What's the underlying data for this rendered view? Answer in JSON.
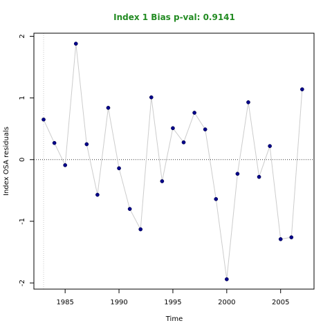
{
  "chart_data": {
    "type": "scatter",
    "title": "Index 1 Bias p-val: 0.9141",
    "title_color": "#228B22",
    "xlabel": "Time",
    "ylabel": "Index OSA residuals",
    "xlim": [
      1982.1,
      2008.1
    ],
    "ylim": [
      -2.1,
      2.05
    ],
    "x_ticks": [
      1985,
      1990,
      1995,
      2000,
      2005
    ],
    "x_tick_labels": [
      "1985",
      "1990",
      "1995",
      "2000",
      "2005"
    ],
    "y_ticks": [
      -2,
      -1,
      0,
      1,
      2
    ],
    "y_tick_labels": [
      "-2",
      "-1",
      "0",
      "1",
      "2"
    ],
    "reference_vline_x": 1983,
    "reference_hline_y": 0,
    "point_color": "#00008B",
    "line_color": "#cccccc",
    "series": [
      {
        "x": [
          1983,
          1984,
          1985,
          1986,
          1987,
          1988,
          1989,
          1990,
          1991,
          1992,
          1993,
          1994,
          1995,
          1996,
          1997,
          1998,
          1999,
          2000,
          2001,
          2002,
          2003,
          2004,
          2005,
          2006,
          2007
        ],
        "values": [
          0.65,
          0.27,
          -0.09,
          1.88,
          0.25,
          -0.57,
          0.84,
          -0.14,
          -0.8,
          -1.13,
          1.01,
          -0.35,
          0.51,
          0.28,
          0.76,
          0.49,
          -0.64,
          -1.94,
          -0.23,
          0.93,
          -0.28,
          0.22,
          -1.29,
          -1.26,
          1.14
        ]
      }
    ]
  }
}
